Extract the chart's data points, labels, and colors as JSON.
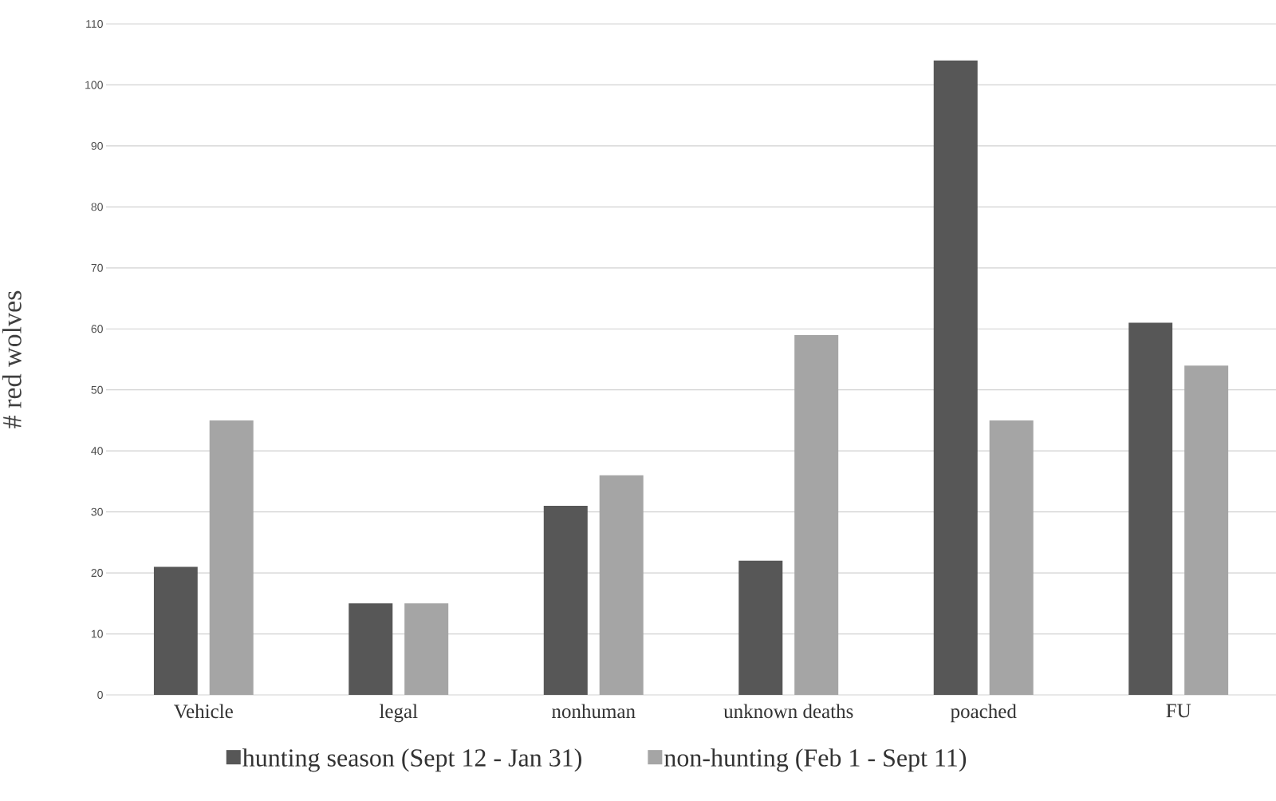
{
  "chart_data": {
    "type": "bar",
    "ylabel": "# red wolves",
    "categories": [
      "Vehicle",
      "legal",
      "nonhuman",
      "unknown deaths",
      "poached",
      "FU"
    ],
    "series": [
      {
        "name": "hunting season (Sept 12 - Jan 31)",
        "color": "#575757",
        "values": [
          21,
          15,
          31,
          22,
          104,
          61
        ]
      },
      {
        "name": "non-hunting (Feb 1 - Sept 11)",
        "color": "#a5a5a5",
        "values": [
          45,
          15,
          36,
          59,
          45,
          54
        ]
      }
    ],
    "ylim": [
      0,
      110
    ],
    "yticks": [
      0,
      10,
      20,
      30,
      40,
      50,
      60,
      70,
      80,
      90,
      100,
      110
    ],
    "grid": "y",
    "legend": "bottom"
  }
}
